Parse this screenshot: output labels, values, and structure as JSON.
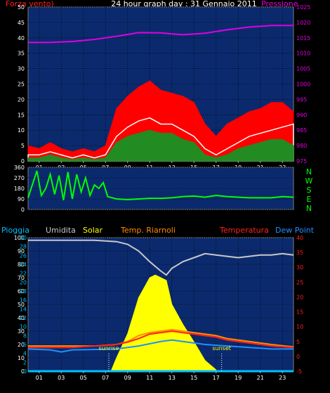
{
  "header": {
    "left_title": "Forza vento)",
    "center_title": "24 hour graph day : 31 Gennaio 2011",
    "right_title": "Pressione"
  },
  "legend_bottom": [
    {
      "label": "Pioggia",
      "color": "#00bfff"
    },
    {
      "label": "Umidita",
      "color": "#c8c8c8"
    },
    {
      "label": "Solar",
      "color": "#ffff00"
    },
    {
      "label": "Temp. Riarnoli",
      "color": "#ff8c00"
    },
    {
      "label": "Temperatura",
      "color": "#ff2020"
    },
    {
      "label": "Dew Point",
      "color": "#1e90ff"
    }
  ],
  "chart_data": [
    {
      "type": "area",
      "id": "wind-pressure",
      "x_ticks": [
        "01",
        "03",
        "05",
        "07",
        "09",
        "11",
        "13",
        "15",
        "17",
        "19",
        "21",
        "23"
      ],
      "y_left_ticks": [
        "0",
        "5",
        "10",
        "15",
        "20",
        "25",
        "30",
        "35",
        "40",
        "45",
        "50"
      ],
      "y_left_lim": [
        0,
        50
      ],
      "y_right_ticks": [
        "975",
        "980",
        "985",
        "990",
        "995",
        "1000",
        "1005",
        "1010",
        "1015",
        "1020",
        "1025"
      ],
      "y_right_lim": [
        975,
        1025
      ],
      "grid": true,
      "series": [
        {
          "name": "Pressione",
          "axis": "right",
          "color": "#e000e0",
          "hours": [
            0,
            2,
            4,
            6,
            8,
            10,
            12,
            14,
            16,
            18,
            20,
            22,
            24
          ],
          "values": [
            1013.5,
            1013.5,
            1013.8,
            1014.5,
            1015.5,
            1016.7,
            1016.6,
            1016.0,
            1016.5,
            1017.6,
            1018.5,
            1019.0,
            1019.0
          ]
        },
        {
          "name": "Forza vento)",
          "axis": "left",
          "color": "#ff0000",
          "hours": [
            0,
            1,
            2,
            3,
            4,
            5,
            6,
            7,
            8,
            9,
            10,
            11,
            12,
            13,
            14,
            15,
            16,
            17,
            18,
            19,
            20,
            21,
            22,
            23,
            24
          ],
          "values": [
            5,
            4,
            6,
            4,
            3,
            4,
            3,
            5,
            17,
            21,
            24,
            26,
            23,
            22,
            21,
            19,
            12,
            8,
            12,
            14,
            16,
            17,
            19,
            19,
            16
          ]
        },
        {
          "color": "#ffffff",
          "hours": [
            0,
            1,
            2,
            3,
            4,
            5,
            6,
            7,
            8,
            9,
            10,
            11,
            12,
            13,
            14,
            15,
            16,
            17,
            18,
            19,
            20,
            21,
            22,
            23,
            24
          ],
          "values": [
            2,
            2,
            3,
            2,
            1,
            2,
            1,
            2,
            8,
            11,
            13,
            14,
            12,
            12,
            10,
            8,
            4,
            2,
            4,
            6,
            8,
            9,
            10,
            11,
            12
          ]
        },
        {
          "color": "#228b22",
          "hours": [
            0,
            1,
            2,
            3,
            4,
            5,
            6,
            7,
            8,
            9,
            10,
            11,
            12,
            13,
            14,
            15,
            16,
            17,
            18,
            19,
            20,
            21,
            22,
            23,
            24
          ],
          "values": [
            1,
            1,
            2,
            1,
            0.5,
            1,
            0.5,
            1,
            6,
            8,
            9,
            10,
            9,
            9,
            7,
            6,
            2,
            1,
            2,
            4,
            5,
            6,
            7,
            7,
            5
          ]
        }
      ]
    },
    {
      "type": "line",
      "id": "wind-direction",
      "y_ticks": [
        "0",
        "90",
        "180",
        "270",
        "360"
      ],
      "y_lim": [
        0,
        360
      ],
      "compass": [
        "N",
        "W",
        "S",
        "E",
        "N"
      ],
      "grid": true,
      "series": [
        {
          "color": "#00ff00",
          "hours": [
            0,
            0.8,
            1.2,
            1.6,
            2.0,
            2.4,
            2.8,
            3.2,
            3.6,
            4.0,
            4.4,
            4.8,
            5.2,
            5.6,
            6.0,
            6.4,
            6.8,
            7.2,
            8,
            9,
            10,
            11,
            12,
            13,
            14,
            15,
            16,
            17,
            18,
            19,
            20,
            21,
            22,
            23,
            24
          ],
          "values": [
            100,
            330,
            120,
            180,
            300,
            130,
            290,
            80,
            320,
            90,
            300,
            150,
            270,
            120,
            210,
            180,
            230,
            110,
            90,
            85,
            90,
            95,
            95,
            100,
            110,
            115,
            105,
            120,
            110,
            105,
            100,
            100,
            100,
            110,
            105
          ]
        }
      ]
    },
    {
      "type": "line",
      "id": "temp-humidity",
      "x_ticks": [
        "01",
        "03",
        "05",
        "07",
        "09",
        "11",
        "13",
        "15",
        "17",
        "19",
        "21",
        "23"
      ],
      "y_left_ticks": [
        "0",
        "10",
        "20",
        "30",
        "40",
        "50",
        "60",
        "70",
        "80",
        "90",
        "100"
      ],
      "y_left_lim": [
        0,
        100
      ],
      "y_left2_ticks": [
        "0",
        "2",
        "4",
        "6",
        "8",
        "10",
        "12",
        "14",
        "16",
        "18",
        "20",
        "22",
        "24",
        "26",
        "28",
        "30"
      ],
      "y_left2_lim": [
        0,
        30
      ],
      "y_right_ticks": [
        "-5",
        "0",
        "5",
        "10",
        "15",
        "20",
        "25",
        "30",
        "35",
        "40"
      ],
      "y_right_lim": [
        -5,
        40
      ],
      "annotations": [
        {
          "label": "sunrise",
          "hour": 7.3
        },
        {
          "label": "sunset",
          "hour": 17.5
        }
      ],
      "grid": true,
      "series": [
        {
          "name": "Umidita",
          "axis": "left",
          "color": "#c8c8c8",
          "hours": [
            0,
            2,
            4,
            6,
            8,
            9,
            10,
            11,
            12,
            12.5,
            13,
            14,
            15,
            16,
            17,
            18,
            19,
            20,
            21,
            22,
            23,
            24
          ],
          "values": [
            98,
            98,
            98,
            98,
            97,
            95,
            90,
            82,
            75,
            72,
            77,
            82,
            85,
            88,
            87,
            86,
            85,
            86,
            87,
            87,
            88,
            87
          ]
        },
        {
          "name": "Solar",
          "axis": "left",
          "color": "#ffff00",
          "hours": [
            7.5,
            8,
            9,
            10,
            11,
            11.5,
            12,
            12.5,
            13,
            14,
            15,
            16,
            17
          ],
          "values": [
            0,
            10,
            28,
            55,
            70,
            72,
            70,
            68,
            50,
            35,
            22,
            8,
            1
          ]
        },
        {
          "name": "Temp. Riarnoli",
          "axis": "right",
          "color": "#ff8c00",
          "hours": [
            0,
            2,
            4,
            6,
            8,
            9,
            10,
            11,
            12,
            13,
            14,
            15,
            16,
            17,
            18,
            20,
            22,
            24
          ],
          "values": [
            3.5,
            3.5,
            3.5,
            3.5,
            4,
            5,
            7,
            8,
            8.5,
            9,
            8.5,
            8,
            7.5,
            7,
            6,
            5,
            4,
            3.2
          ]
        },
        {
          "name": "Temperatura",
          "axis": "right",
          "color": "#ff2020",
          "hours": [
            0,
            2,
            4,
            6,
            8,
            9,
            10,
            11,
            12,
            13,
            14,
            15,
            16,
            17,
            18,
            20,
            22,
            24
          ],
          "values": [
            3,
            3,
            3,
            3.5,
            4,
            4.8,
            6,
            7.5,
            8,
            8.5,
            8,
            7.5,
            7,
            6.5,
            5.5,
            4.5,
            3.5,
            3
          ]
        },
        {
          "name": "Dew Point",
          "axis": "right",
          "color": "#1e90ff",
          "hours": [
            0,
            2,
            3,
            4,
            6,
            8,
            10,
            12,
            13,
            14,
            16,
            18,
            20,
            22,
            24
          ],
          "values": [
            2.5,
            2.2,
            1.5,
            2.2,
            2.3,
            2.5,
            3.5,
            5,
            5.5,
            5,
            4,
            3.5,
            3,
            2.5,
            2.5
          ]
        },
        {
          "name": "Pioggia",
          "axis": "left",
          "color": "#00bfff",
          "hours": [
            0,
            24
          ],
          "values": [
            0,
            0
          ]
        }
      ]
    }
  ]
}
